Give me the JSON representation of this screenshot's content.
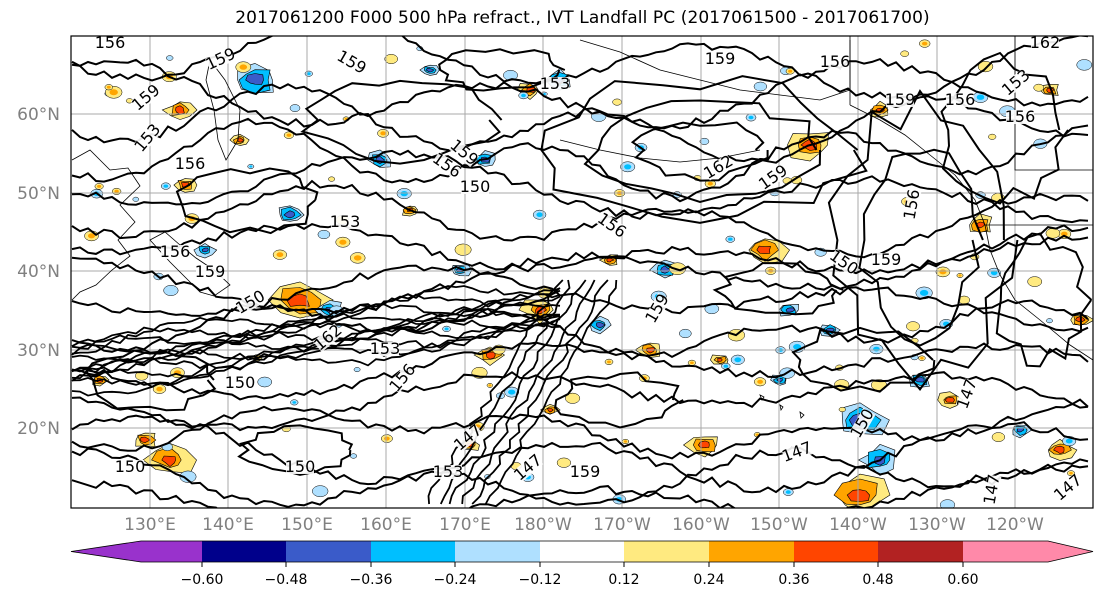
{
  "title": "2017061200 F000 500 hPa refract., IVT Landfall PC (2017061500 - 2017061700)",
  "map": {
    "lat_labels": [
      "60°N",
      "50°N",
      "40°N",
      "30°N",
      "20°N"
    ],
    "lon_labels": [
      "130°E",
      "140°E",
      "150°E",
      "160°E",
      "170°E",
      "180°W",
      "170°W",
      "160°W",
      "150°W",
      "140°W",
      "130°W",
      "120°W"
    ],
    "contour_labels": [
      "156",
      "159",
      "159",
      "153",
      "156",
      "159",
      "159",
      "153",
      "162",
      "156",
      "159",
      "156",
      "162",
      "159",
      "156",
      "153",
      "159",
      "156",
      "150",
      "156",
      "159",
      "156",
      "150",
      "153",
      "162",
      "159",
      "159",
      "150",
      "153",
      "150",
      "156",
      "147",
      "150",
      "147",
      "153",
      "150",
      "150",
      "147",
      "147",
      "147",
      "147",
      "156",
      "159"
    ]
  },
  "colorbar": {
    "ticks": [
      "−0.60",
      "−0.48",
      "−0.36",
      "−0.24",
      "−0.12",
      "0.12",
      "0.24",
      "0.36",
      "0.48",
      "0.60"
    ],
    "colors": [
      "#9932cc",
      "#00008b",
      "#3a5bc9",
      "#00bfff",
      "#afe0ff",
      "#ffffff",
      "#ffea80",
      "#ffa500",
      "#ff4500",
      "#b22222",
      "#ff89a9"
    ]
  },
  "colors": {
    "land_border": "#000000",
    "grid": "#a0a0a0",
    "contour": "#000000"
  }
}
